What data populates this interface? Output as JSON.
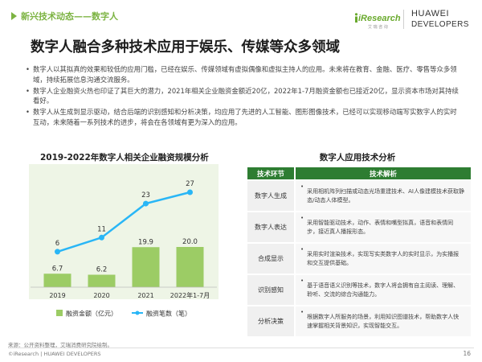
{
  "header": {
    "section_tag": "新兴技术动态——数字人",
    "ires_name": "iResearch",
    "ires_sub": "艾 瑞 咨 询",
    "huawei_line1": "HUAWEI",
    "huawei_line2": "DEVELOPERS"
  },
  "title": "数字人融合多种技术应用于娱乐、传媒等众多领域",
  "bullets": [
    "数字人以其拟真的效果和较低的应用门槛，已经在娱乐、传媒领域有虚拟偶像和虚拟主持人的应用。未来将在教育、金融、医疗、零售等众多领域，持续拓展信息沟通交流服务。",
    "数字人企业融资火热也印证了其巨大的潜力，2021年相关企业融资金额近20亿，2022年1-7月融资金额也已接近20亿，显示资本市场对其持续看好。",
    "数字人从生成到显示驱动，结合后端的识别感知和分析决策，均应用了先进的人工智能、图形图像技术，已经可以实现移动端写实数字人的实时互动，未来随着一系列技术的进步，将会在各领域有更为深入的应用。"
  ],
  "bullet_symbol": "•",
  "chart_data": {
    "type": "bar",
    "title": "2019-2022年数字人相关企业融资规模分析",
    "categories": [
      "2019",
      "2020",
      "2021",
      "2022年1-7月"
    ],
    "series": [
      {
        "name": "融资金额（亿元）",
        "type": "bar",
        "values": [
          6.7,
          6.2,
          19.9,
          20.0
        ],
        "labels": [
          "6.7",
          "6.2",
          "19.9",
          "20.0"
        ],
        "color": "#9ccc65"
      },
      {
        "name": "融资笔数（笔）",
        "type": "line",
        "values": [
          6,
          11,
          23,
          27
        ],
        "color": "#29b6f6"
      }
    ],
    "legend_position": "bottom"
  },
  "table": {
    "title": "数字人应用技术分析",
    "headers": [
      "技术环节",
      "技术解析"
    ],
    "rows": [
      {
        "stage": "数字人生成",
        "desc": "采用相机阵列扫描或动态光场重建技术、AI人像建模技术获取静态/动态人体模型。"
      },
      {
        "stage": "数字人表达",
        "desc": "采用智能驱动技术，动作、表情和嘴型拟真，语音和表情同步，接近真人播报形态。"
      },
      {
        "stage": "合成显示",
        "desc": "采用实时渲染技术，实现写实类数字人的实时显示，为实播报和交互提供基础。"
      },
      {
        "stage": "识别感知",
        "desc": "基于语音语义识别等技术，数字人将会拥有自主阅读、理解、聆听、交流的综合沟通能力。"
      },
      {
        "stage": "分析决策",
        "desc": "根据数字人所服务的场景，利用知识图谱技术，帮助数字人快速掌握相关背景知识，实现智能交互。"
      }
    ]
  },
  "footer": {
    "source": "来源：公开资料整理，艾瑞消费研究院绘制。",
    "copyright": "©iResearch | HUAWEI DEVELOPERS",
    "page": "16"
  },
  "colors": {
    "accent_green": "#7CB342",
    "table_header": "#2e7d32",
    "line_blue": "#29b6f6",
    "bar_green": "#9ccc65"
  }
}
